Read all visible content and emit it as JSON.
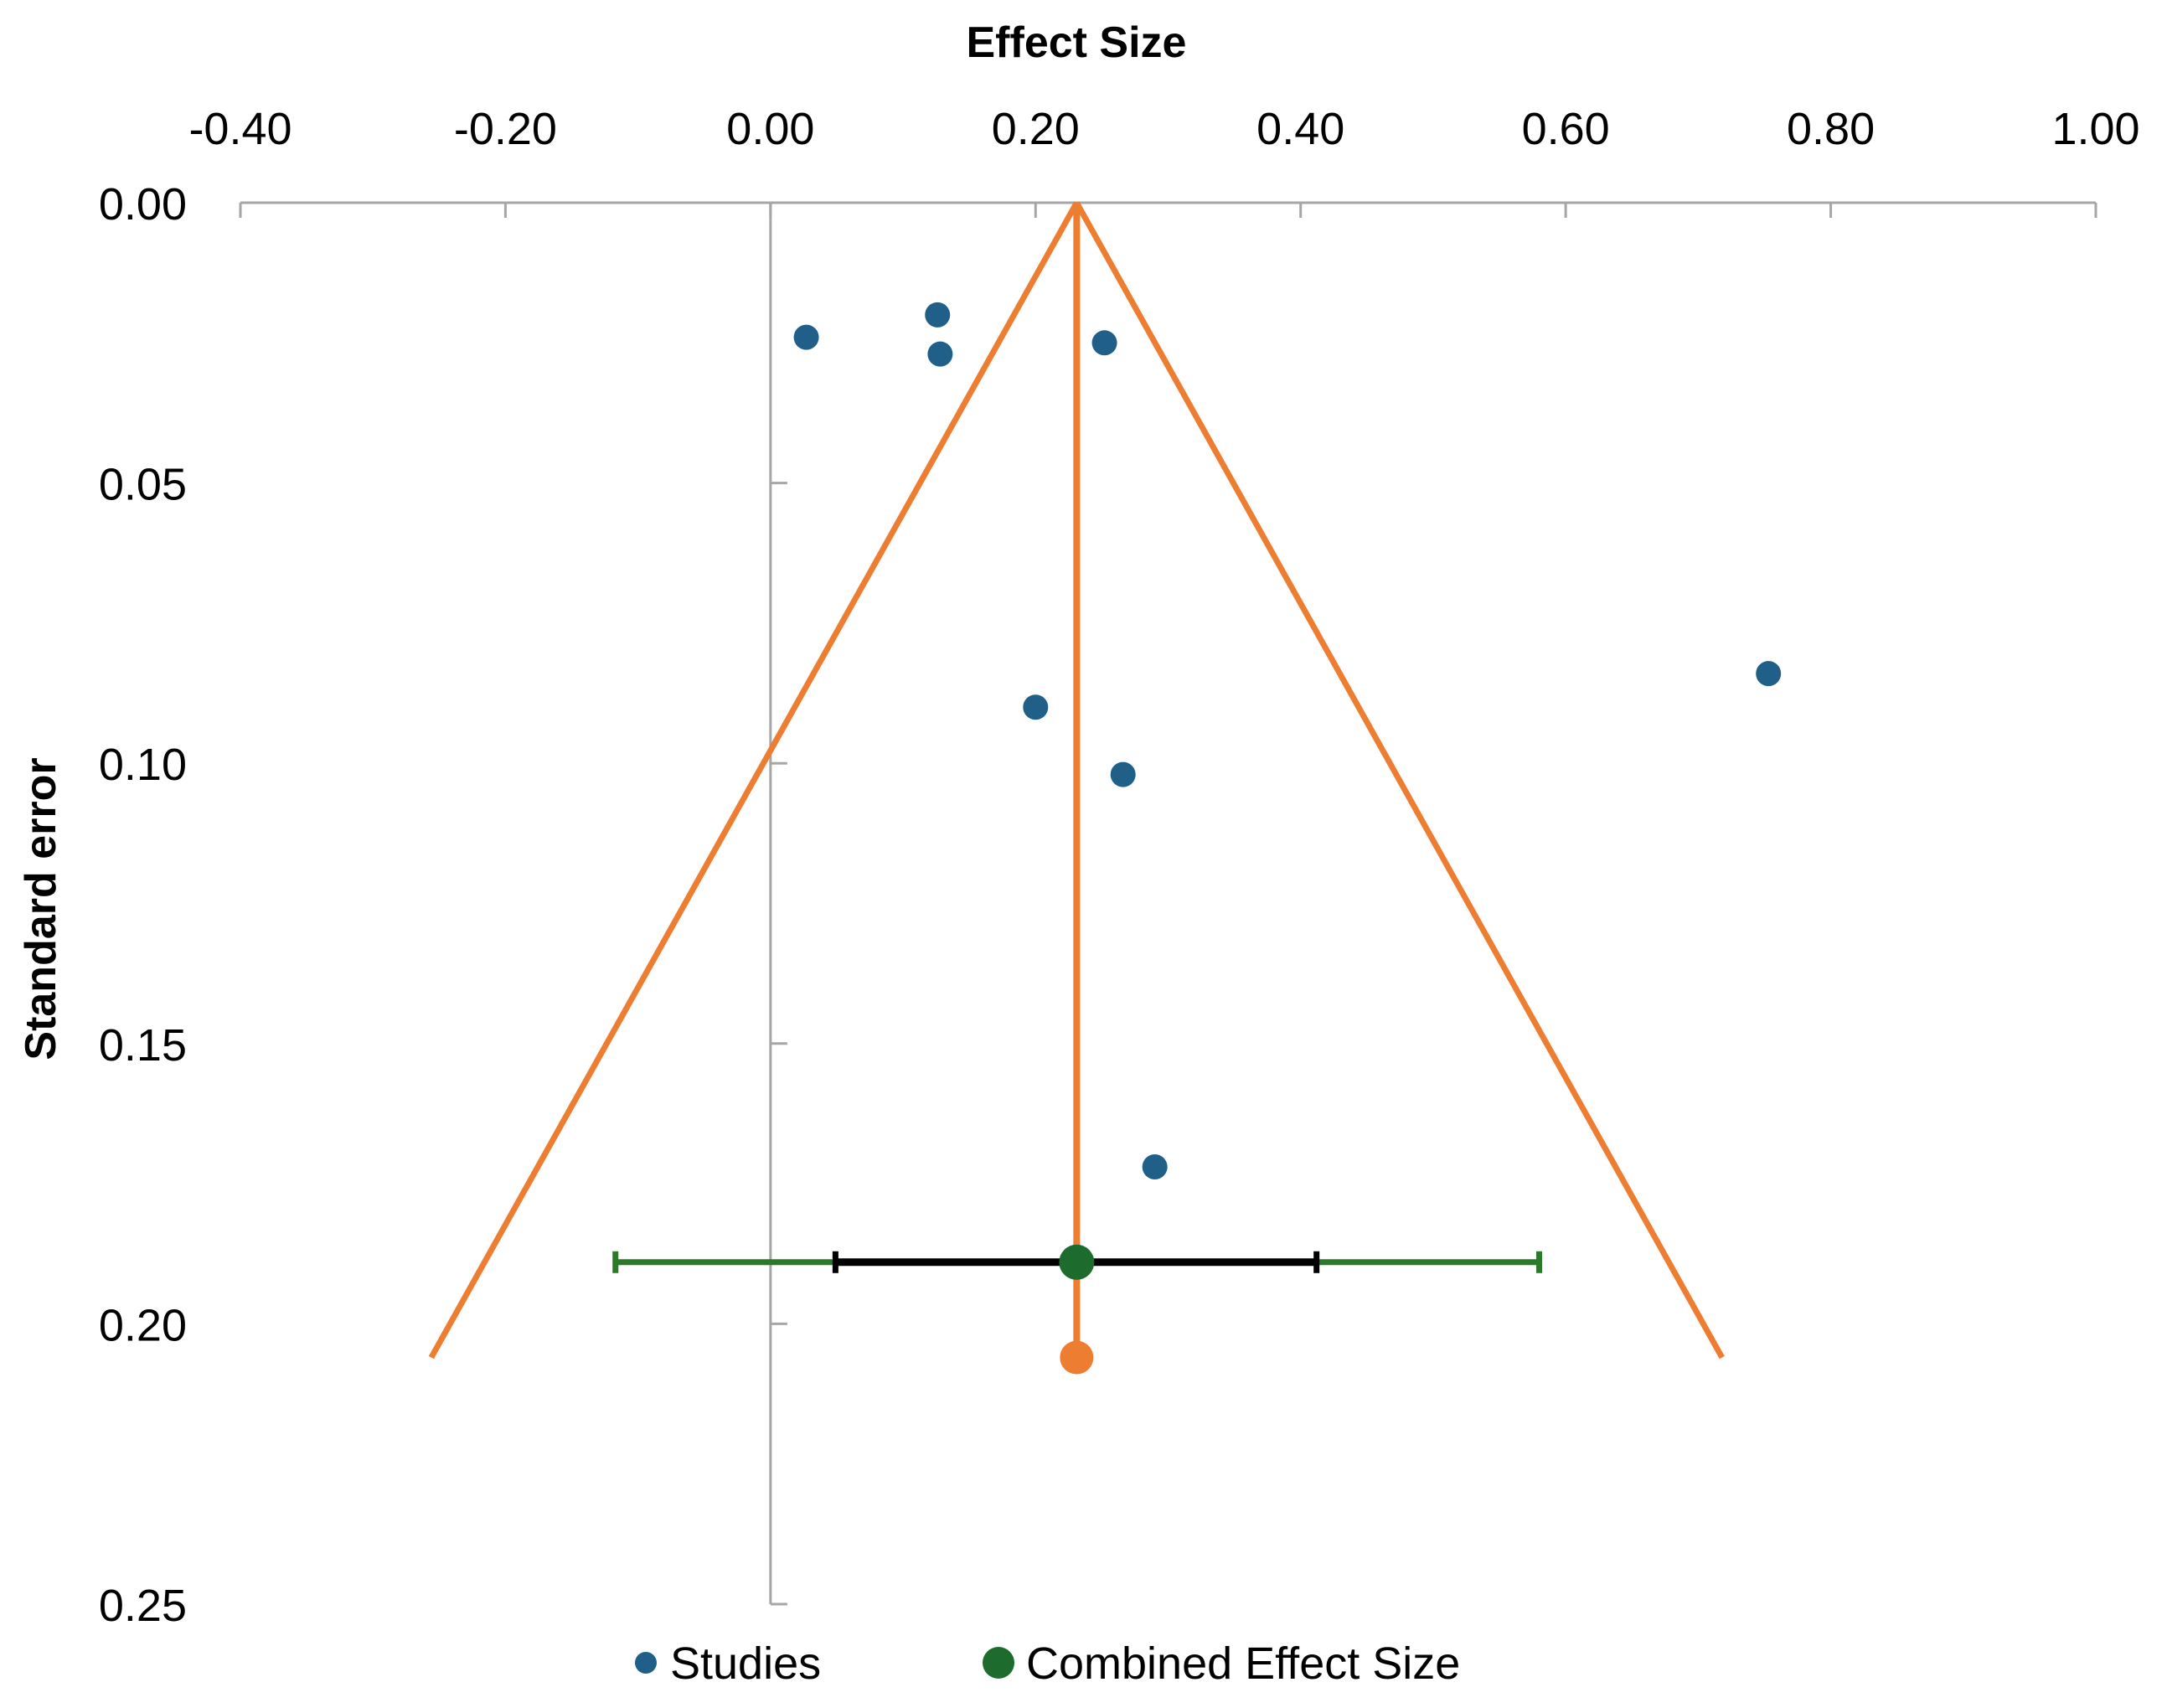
{
  "chart_data": {
    "type": "scatter",
    "subtype": "funnel-plot",
    "xlabel": "Effect Size",
    "ylabel": "Standard error",
    "xlim": [
      -0.4,
      1.0
    ],
    "ylim": [
      0.0,
      0.25
    ],
    "y_inverted": true,
    "x_axis_position": "top",
    "x_ticks": [
      -0.4,
      -0.2,
      0.0,
      0.2,
      0.4,
      0.6,
      0.8,
      1.0
    ],
    "x_tick_labels": [
      "-0.40",
      "-0.20",
      "0.00",
      "0.20",
      "0.40",
      "0.60",
      "0.80",
      "1.00"
    ],
    "y_ticks": [
      0.0,
      0.05,
      0.1,
      0.15,
      0.2,
      0.25
    ],
    "y_tick_labels": [
      "0.00",
      "0.05",
      "0.10",
      "0.15",
      "0.20",
      "0.25"
    ],
    "vertical_zero_line_x": 0.0,
    "series": [
      {
        "name": "Studies",
        "type": "scatter",
        "color": "#1f5f88",
        "points": [
          {
            "x": 0.027,
            "y": 0.024
          },
          {
            "x": 0.126,
            "y": 0.02
          },
          {
            "x": 0.128,
            "y": 0.027
          },
          {
            "x": 0.252,
            "y": 0.025
          },
          {
            "x": 0.753,
            "y": 0.084
          },
          {
            "x": 0.2,
            "y": 0.09
          },
          {
            "x": 0.266,
            "y": 0.102
          },
          {
            "x": 0.29,
            "y": 0.172
          }
        ]
      },
      {
        "name": "Combined Effect Size",
        "type": "point",
        "color": "#1e6b2e",
        "point": {
          "x": 0.231,
          "y": 0.189
        },
        "inner_interval": {
          "low": 0.049,
          "high": 0.412,
          "color": "#000000"
        },
        "outer_interval": {
          "low": -0.117,
          "high": 0.58,
          "color": "#2a7a2a"
        }
      }
    ],
    "funnel": {
      "color": "#ed7d31",
      "apex": {
        "x": 0.231,
        "y": 0.0
      },
      "left_end": {
        "x": -0.256,
        "y": 0.206
      },
      "right_end": {
        "x": 0.718,
        "y": 0.206
      },
      "center_line": {
        "x": 0.231,
        "y_start": 0.0,
        "y_end": 0.206
      },
      "center_marker": {
        "x": 0.231,
        "y": 0.206
      }
    },
    "legend": {
      "placement": "bottom",
      "entries": [
        {
          "label": "Studies",
          "color": "#1f5f88"
        },
        {
          "label": "Combined Effect Size",
          "color": "#1e6b2e"
        }
      ]
    }
  }
}
